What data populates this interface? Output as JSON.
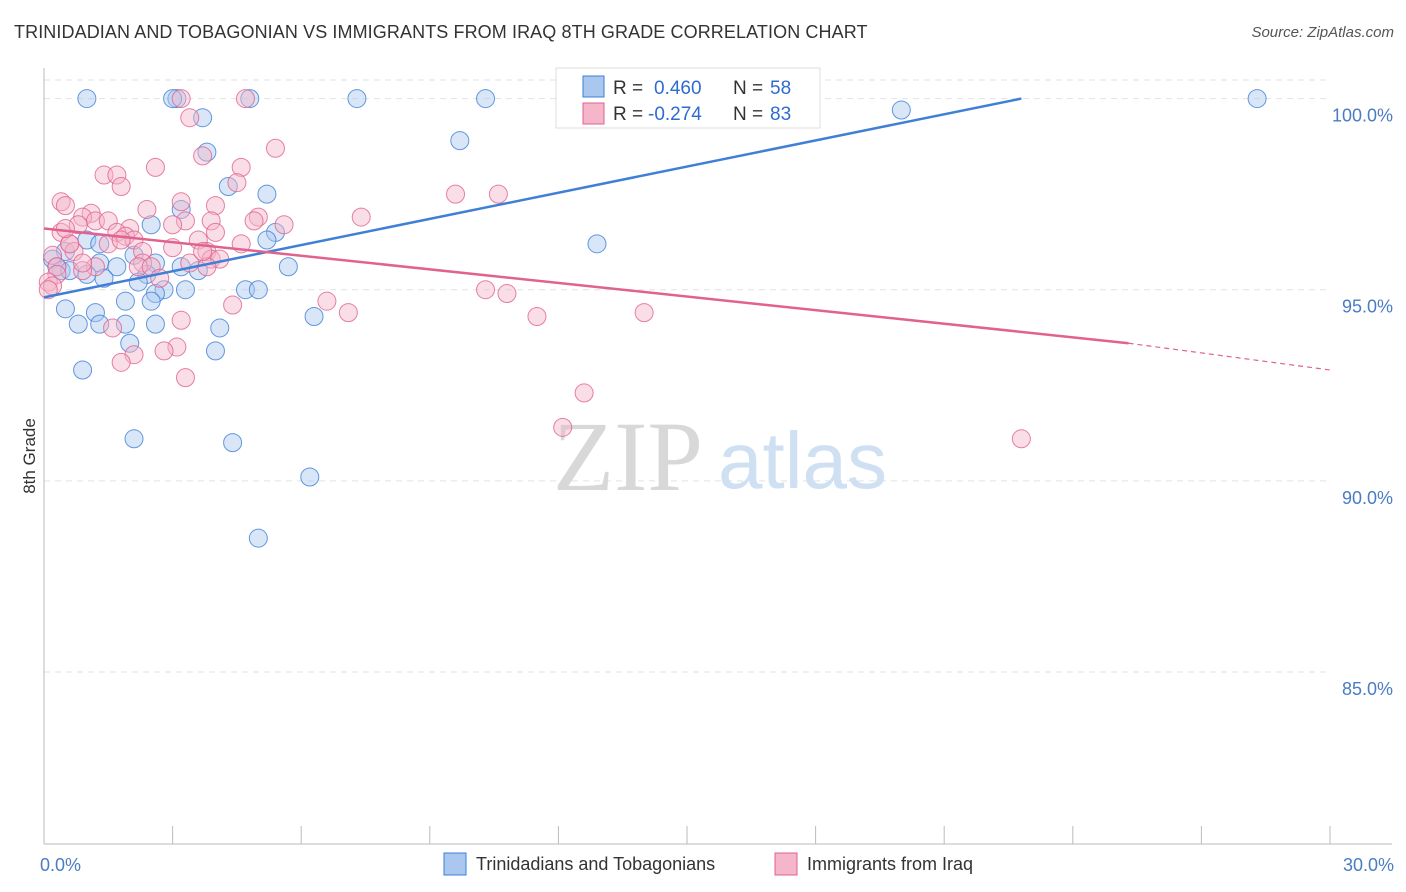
{
  "title": "TRINIDADIAN AND TOBAGONIAN VS IMMIGRANTS FROM IRAQ 8TH GRADE CORRELATION CHART",
  "source": "Source: ZipAtlas.com",
  "watermark": {
    "zip": "ZIP",
    "atlas": "atlas"
  },
  "colors": {
    "blue": "#3f7fd6",
    "blue_fill": "#a9c7ef",
    "pink": "#e0628f",
    "pink_fill": "#f5b6ca",
    "grid": "#e2e2e2",
    "tick_text": "#4a7cc4"
  },
  "legend": {
    "series1": {
      "r_label": "R =",
      "r_value": "0.460",
      "n_label": "N =",
      "n_value": "58"
    },
    "series2": {
      "r_label": "R =",
      "r_value": "-0.274",
      "n_label": "N =",
      "n_value": "83"
    }
  },
  "chart_data": {
    "type": "scatter",
    "title": "TRINIDADIAN AND TOBAGONIAN VS IMMIGRANTS FROM IRAQ 8TH GRADE CORRELATION CHART",
    "xlabel": "",
    "ylabel": "8th Grade",
    "xlim": [
      0,
      30
    ],
    "ylim": [
      80.5,
      100.8
    ],
    "x_tick_labels": [
      {
        "value": 0,
        "label": "0.0%"
      },
      {
        "value": 30,
        "label": "30.0%"
      }
    ],
    "y_tick_labels": [
      {
        "value": 100,
        "label": "100.0%"
      },
      {
        "value": 95,
        "label": "95.0%"
      },
      {
        "value": 90,
        "label": "90.0%"
      },
      {
        "value": 85,
        "label": "85.0%"
      }
    ],
    "series": [
      {
        "name": "Trinidadians and Tobagonians",
        "color": "#3f7fd6",
        "trend": {
          "x": [
            0,
            22.8
          ],
          "y": [
            94.8,
            100.0
          ]
        },
        "points": [
          [
            3.1,
            100
          ],
          [
            7.3,
            100
          ],
          [
            10.3,
            100
          ],
          [
            28.3,
            100
          ],
          [
            1.0,
            100
          ],
          [
            3.0,
            100
          ],
          [
            4.8,
            100
          ],
          [
            20.0,
            99.7
          ],
          [
            3.7,
            99.5
          ],
          [
            9.7,
            98.9
          ],
          [
            3.8,
            98.6
          ],
          [
            4.3,
            97.7
          ],
          [
            5.2,
            97.5
          ],
          [
            3.2,
            97.1
          ],
          [
            2.5,
            96.7
          ],
          [
            5.4,
            96.5
          ],
          [
            1.0,
            96.3
          ],
          [
            5.2,
            96.3
          ],
          [
            1.3,
            96.2
          ],
          [
            12.9,
            96.2
          ],
          [
            0.5,
            96.0
          ],
          [
            2.1,
            95.9
          ],
          [
            0.2,
            95.8
          ],
          [
            1.3,
            95.7
          ],
          [
            2.6,
            95.7
          ],
          [
            1.7,
            95.6
          ],
          [
            3.2,
            95.6
          ],
          [
            5.7,
            95.6
          ],
          [
            0.4,
            95.5
          ],
          [
            3.6,
            95.5
          ],
          [
            1.0,
            95.4
          ],
          [
            2.4,
            95.4
          ],
          [
            1.4,
            95.3
          ],
          [
            2.2,
            95.2
          ],
          [
            2.8,
            95.0
          ],
          [
            3.3,
            95.0
          ],
          [
            4.7,
            95.0
          ],
          [
            5.0,
            95.0
          ],
          [
            2.6,
            94.9
          ],
          [
            1.9,
            94.7
          ],
          [
            2.5,
            94.7
          ],
          [
            0.5,
            94.5
          ],
          [
            1.2,
            94.4
          ],
          [
            6.3,
            94.3
          ],
          [
            0.8,
            94.1
          ],
          [
            1.3,
            94.1
          ],
          [
            1.9,
            94.1
          ],
          [
            2.6,
            94.1
          ],
          [
            4.1,
            94.0
          ],
          [
            2.0,
            93.6
          ],
          [
            4.0,
            93.4
          ],
          [
            0.9,
            92.9
          ],
          [
            2.1,
            91.1
          ],
          [
            4.4,
            91.0
          ],
          [
            6.2,
            90.1
          ],
          [
            5.0,
            88.5
          ],
          [
            0.3,
            95.6
          ],
          [
            0.6,
            95.5
          ]
        ]
      },
      {
        "name": "Immigrants from Iraq",
        "color": "#e0628f",
        "trend": {
          "x": [
            0,
            25.3
          ],
          "y": [
            96.6,
            93.6
          ]
        },
        "trend_dashed": {
          "x": [
            25.3,
            30
          ],
          "y": [
            93.6,
            92.9
          ]
        },
        "points": [
          [
            3.2,
            100
          ],
          [
            4.7,
            100
          ],
          [
            14.2,
            100
          ],
          [
            3.4,
            99.5
          ],
          [
            5.4,
            98.7
          ],
          [
            3.7,
            98.5
          ],
          [
            2.6,
            98.2
          ],
          [
            4.6,
            98.2
          ],
          [
            1.4,
            98.0
          ],
          [
            1.7,
            98.0
          ],
          [
            4.5,
            97.8
          ],
          [
            1.8,
            97.7
          ],
          [
            9.6,
            97.5
          ],
          [
            10.6,
            97.5
          ],
          [
            0.4,
            97.3
          ],
          [
            3.2,
            97.3
          ],
          [
            0.5,
            97.2
          ],
          [
            4.0,
            97.2
          ],
          [
            2.4,
            97.1
          ],
          [
            1.1,
            97.0
          ],
          [
            0.9,
            96.9
          ],
          [
            5.0,
            96.9
          ],
          [
            7.4,
            96.9
          ],
          [
            1.2,
            96.8
          ],
          [
            1.5,
            96.8
          ],
          [
            3.3,
            96.8
          ],
          [
            3.9,
            96.8
          ],
          [
            0.8,
            96.7
          ],
          [
            5.6,
            96.7
          ],
          [
            2.0,
            96.6
          ],
          [
            0.4,
            96.5
          ],
          [
            1.7,
            96.5
          ],
          [
            4.0,
            96.5
          ],
          [
            1.9,
            96.4
          ],
          [
            2.1,
            96.3
          ],
          [
            3.6,
            96.3
          ],
          [
            0.6,
            96.2
          ],
          [
            1.5,
            96.2
          ],
          [
            4.6,
            96.2
          ],
          [
            3.0,
            96.1
          ],
          [
            0.7,
            96.0
          ],
          [
            2.3,
            96.0
          ],
          [
            3.8,
            96.0
          ],
          [
            0.2,
            95.9
          ],
          [
            3.9,
            95.8
          ],
          [
            4.1,
            95.8
          ],
          [
            2.3,
            95.7
          ],
          [
            3.4,
            95.7
          ],
          [
            0.3,
            95.6
          ],
          [
            1.2,
            95.6
          ],
          [
            2.2,
            95.6
          ],
          [
            3.8,
            95.6
          ],
          [
            0.9,
            95.5
          ],
          [
            0.3,
            95.4
          ],
          [
            0.1,
            95.2
          ],
          [
            0.2,
            95.1
          ],
          [
            0.1,
            95.0
          ],
          [
            10.3,
            95.0
          ],
          [
            10.8,
            94.9
          ],
          [
            6.6,
            94.7
          ],
          [
            4.4,
            94.6
          ],
          [
            7.1,
            94.4
          ],
          [
            11.5,
            94.3
          ],
          [
            14.0,
            94.4
          ],
          [
            3.2,
            94.2
          ],
          [
            1.6,
            94.0
          ],
          [
            3.1,
            93.5
          ],
          [
            2.8,
            93.4
          ],
          [
            2.1,
            93.3
          ],
          [
            1.8,
            93.1
          ],
          [
            3.3,
            92.7
          ],
          [
            12.6,
            92.3
          ],
          [
            12.1,
            91.4
          ],
          [
            22.8,
            91.1
          ],
          [
            0.6,
            96.2
          ],
          [
            0.9,
            95.7
          ],
          [
            1.8,
            96.3
          ],
          [
            2.5,
            95.6
          ],
          [
            3.0,
            96.7
          ],
          [
            3.7,
            96.0
          ],
          [
            4.9,
            96.8
          ],
          [
            0.5,
            96.6
          ],
          [
            2.7,
            95.3
          ]
        ]
      }
    ]
  }
}
